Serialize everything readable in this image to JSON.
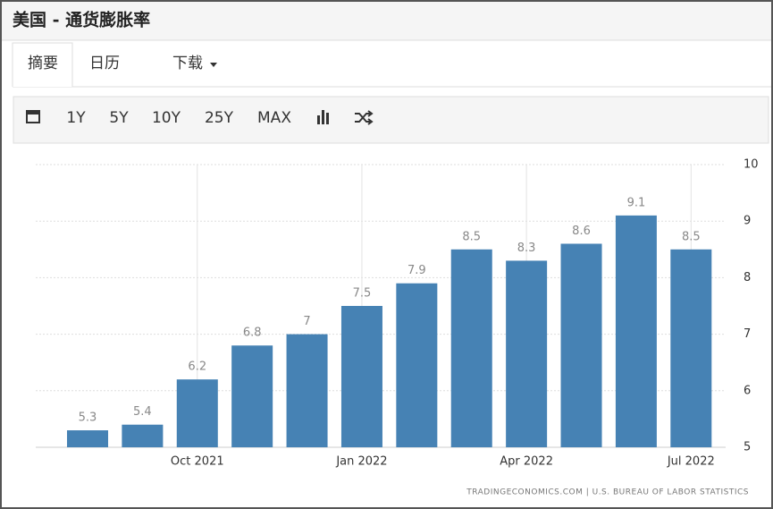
{
  "header": {
    "title": "美国 - 通货膨胀率"
  },
  "tabs": [
    "摘要",
    "日历",
    "下载"
  ],
  "toolbar": [
    "1Y",
    "5Y",
    "10Y",
    "25Y",
    "MAX"
  ],
  "chart_data": {
    "type": "bar",
    "categories": [
      null,
      null,
      "Oct 2021",
      null,
      null,
      "Jan 2022",
      null,
      null,
      "Apr 2022",
      null,
      null,
      "Jul 2022"
    ],
    "values": [
      5.3,
      5.4,
      6.2,
      6.8,
      7,
      7.5,
      7.9,
      8.5,
      8.3,
      8.6,
      9.1,
      8.5
    ],
    "color": "#4682b4",
    "ylim": [
      5,
      10
    ],
    "yticks": [
      5,
      6,
      7,
      8,
      9,
      10
    ],
    "grid": true,
    "source": "TRADINGECONOMICS.COM | U.S. BUREAU OF LABOR STATISTICS"
  }
}
